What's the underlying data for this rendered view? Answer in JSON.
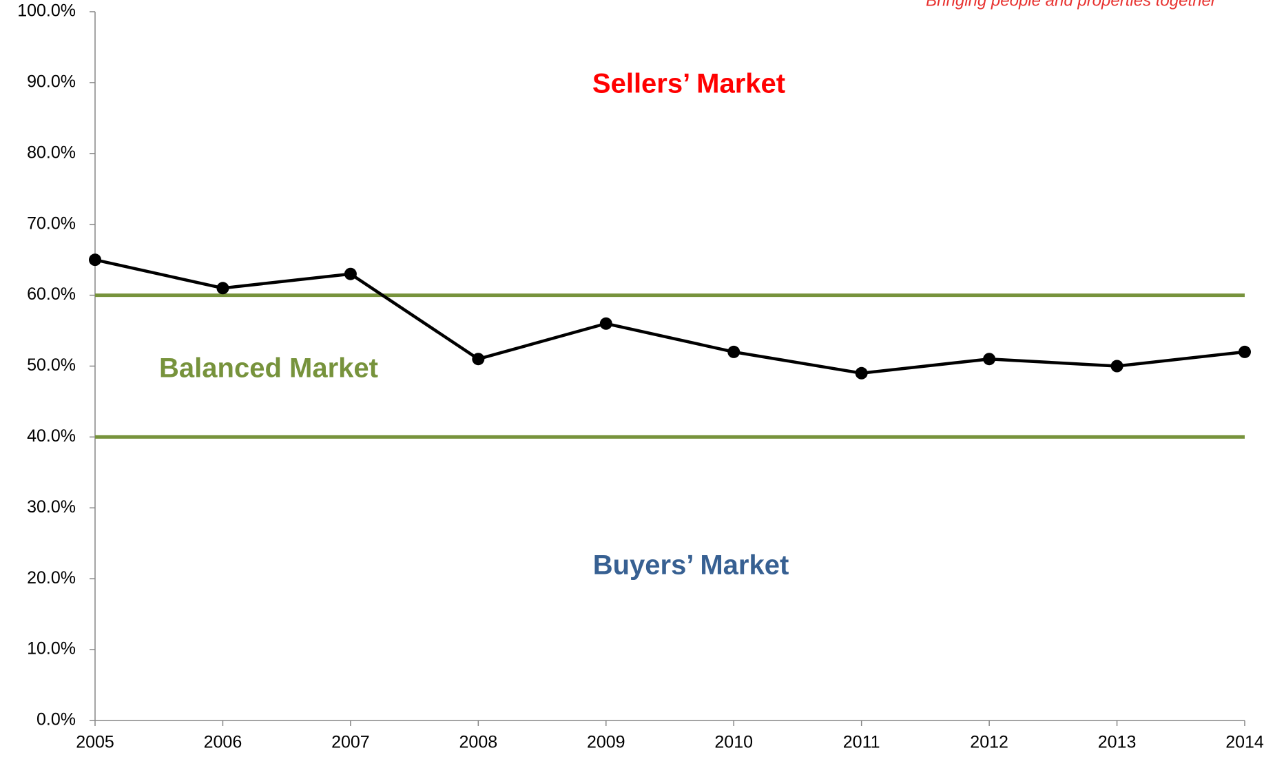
{
  "chart_data": {
    "type": "line",
    "tagline": {
      "text": "Bringing people and properties together",
      "color": "#e8312f"
    },
    "categories": [
      "2005",
      "2006",
      "2007",
      "2008",
      "2009",
      "2010",
      "2011",
      "2012",
      "2013",
      "2014"
    ],
    "series": [
      {
        "color": "#000000",
        "values": [
          65,
          61,
          63,
          51,
          56,
          52,
          49,
          51,
          50,
          52
        ]
      }
    ],
    "ylim": [
      0,
      100
    ],
    "yticks": [
      {
        "value": 0,
        "label": "0.0%"
      },
      {
        "value": 10,
        "label": "10.0%"
      },
      {
        "value": 20,
        "label": "20.0%"
      },
      {
        "value": 30,
        "label": "30.0%"
      },
      {
        "value": 40,
        "label": "40.0%"
      },
      {
        "value": 50,
        "label": "50.0%"
      },
      {
        "value": 60,
        "label": "60.0%"
      },
      {
        "value": 70,
        "label": "70.0%"
      },
      {
        "value": 80,
        "label": "80.0%"
      },
      {
        "value": 90,
        "label": "90.0%"
      },
      {
        "value": 100,
        "label": "100.0%"
      }
    ],
    "reference_lines": [
      {
        "value": 60,
        "color": "#77933c"
      },
      {
        "value": 40,
        "color": "#77933c"
      }
    ],
    "annotations": [
      {
        "text": "Sellers’ Market",
        "color": "#ff0000"
      },
      {
        "text": "Balanced Market",
        "color": "#77933c"
      },
      {
        "text": "Buyers’ Market",
        "color": "#376092"
      }
    ],
    "grid": false
  }
}
